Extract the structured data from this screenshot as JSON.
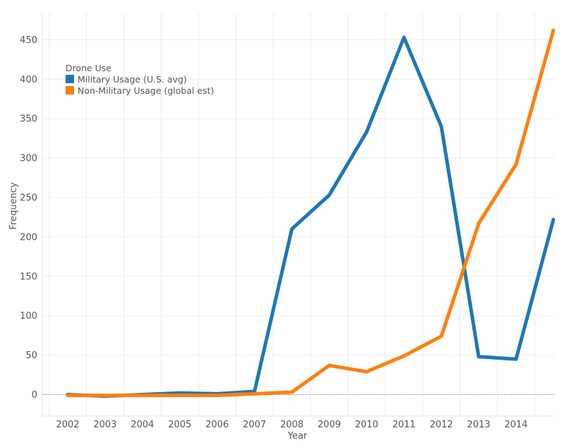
{
  "chart_data": {
    "type": "line",
    "xlabel": "Year",
    "ylabel": "Frequency",
    "x": [
      2002,
      2003,
      2004,
      2005,
      2006,
      2007,
      2008,
      2009,
      2010,
      2011,
      2012,
      2013,
      2014,
      2015
    ],
    "x_tick_labels": [
      "2002",
      "2003",
      "2004",
      "2005",
      "2006",
      "2007",
      "2008",
      "2009",
      "2010",
      "2011",
      "2012",
      "2013",
      "2014"
    ],
    "y_ticks": [
      0,
      50,
      100,
      150,
      200,
      250,
      300,
      350,
      400,
      450
    ],
    "ylim": [
      -28,
      490
    ],
    "grid": true,
    "legend": {
      "title": "Drone Use",
      "placement": "top-left"
    },
    "series": [
      {
        "name": "Military Usage (U.S. avg)",
        "color": "#1f77b4",
        "values": [
          0,
          -2,
          0,
          2,
          1,
          4,
          210,
          253,
          333,
          453,
          340,
          48,
          45,
          222
        ]
      },
      {
        "name": "Non-Military Usage (global est)",
        "color": "#ff7f0e",
        "values": [
          -1,
          -1,
          -1,
          -1,
          -1,
          1,
          3,
          37,
          29,
          49,
          74,
          217,
          292,
          462
        ]
      }
    ]
  }
}
